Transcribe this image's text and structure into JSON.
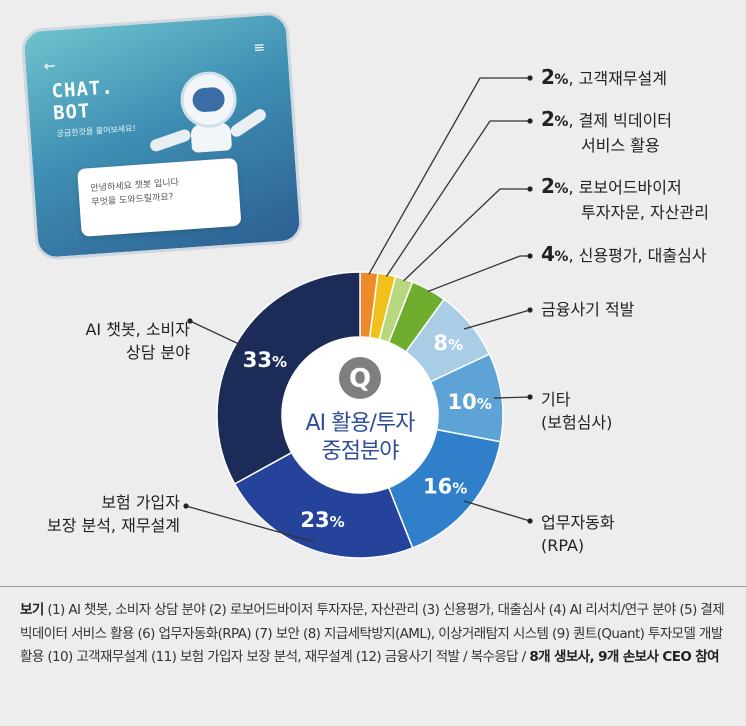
{
  "phone": {
    "back_glyph": "←",
    "menu_glyph": "≡",
    "title_line1": "CHAT.",
    "title_line2": "BOT",
    "subtitle": "궁금한것을 물어보세요!",
    "bubble_line1": "안녕하세요 챗봇 입니다",
    "bubble_line2": "무엇을 도와드릴까요?"
  },
  "center": {
    "badge": "Q",
    "line1": "AI 활용/투자",
    "line2": "중점분야"
  },
  "colors": {
    "ring_inner": "#ffffff",
    "badge_bg": "#7f7f7f",
    "center_text": "#2f4e98",
    "leader": "#333333"
  },
  "chart_data": {
    "type": "pie",
    "unit": "%",
    "series": [
      {
        "label": "AI 챗봇, 소비자 상담 분야",
        "value": 33,
        "pct_text": "33",
        "label_lines": [
          "AI 챗봇, 소비자",
          "상담 분야"
        ],
        "color": "#1c2b57"
      },
      {
        "label": "보험 가입자 보장 분석, 재무설계",
        "value": 23,
        "pct_text": "23",
        "label_lines": [
          "보험 가입자",
          "보장 분석, 재무설계"
        ],
        "color": "#25439a"
      },
      {
        "label": "업무자동화(RPA)",
        "value": 16,
        "pct_text": "16",
        "label_lines": [
          "업무자동화",
          "(RPA)"
        ],
        "color": "#2f7fcb"
      },
      {
        "label": "기타 (보험심사)",
        "value": 10,
        "pct_text": "10",
        "label_lines": [
          "기타",
          "(보험심사)"
        ],
        "color": "#5ea3d6"
      },
      {
        "label": "금융사기 적발",
        "value": 8,
        "pct_text": "8",
        "label_lines": [
          "금융사기 적발"
        ],
        "color": "#a8cde4"
      },
      {
        "label": "신용평가, 대출심사",
        "value": 4,
        "pct_text": "4",
        "label_lines": [
          "신용평가, 대출심사"
        ],
        "color": "#6fad2f"
      },
      {
        "label": "로보어드바이저 투자자문, 자산관리",
        "value": 2,
        "pct_text": "2",
        "label_lines": [
          "로보어드바이저",
          "투자자문, 자산관리"
        ],
        "color": "#b9d77e"
      },
      {
        "label": "결제 빅데이터 서비스 활용",
        "value": 2,
        "pct_text": "2",
        "label_lines": [
          "결제 빅데이터",
          "서비스 활용"
        ],
        "color": "#f2c01b"
      },
      {
        "label": "고객재무설계",
        "value": 2,
        "pct_text": "2",
        "label_lines": [
          "고객재무설계"
        ],
        "color": "#ee8a27"
      }
    ]
  },
  "legend": {
    "key": "보기",
    "body": " (1) AI 챗봇, 소비자 상담 분야 (2) 로보어드바이저 투자자문, 자산관리 (3) 신용평가, 대출심사 (4) AI 리서치/연구 분야 (5) 결제 빅데이터 서비스 활용 (6) 업무자동화(RPA) (7) 보안 (8) 지급세탁방지(AML), 이상거래탐지 시스템 (9) 퀀트(Quant) 투자모델 개발 활용 (10) 고객재무설계 (11) 보험 가입자 보장 분석, 재무설계 (12) 금융사기 적발 / 복수응답 / ",
    "tail": "8개 생보사, 9개 손보사 CEO 참여"
  }
}
